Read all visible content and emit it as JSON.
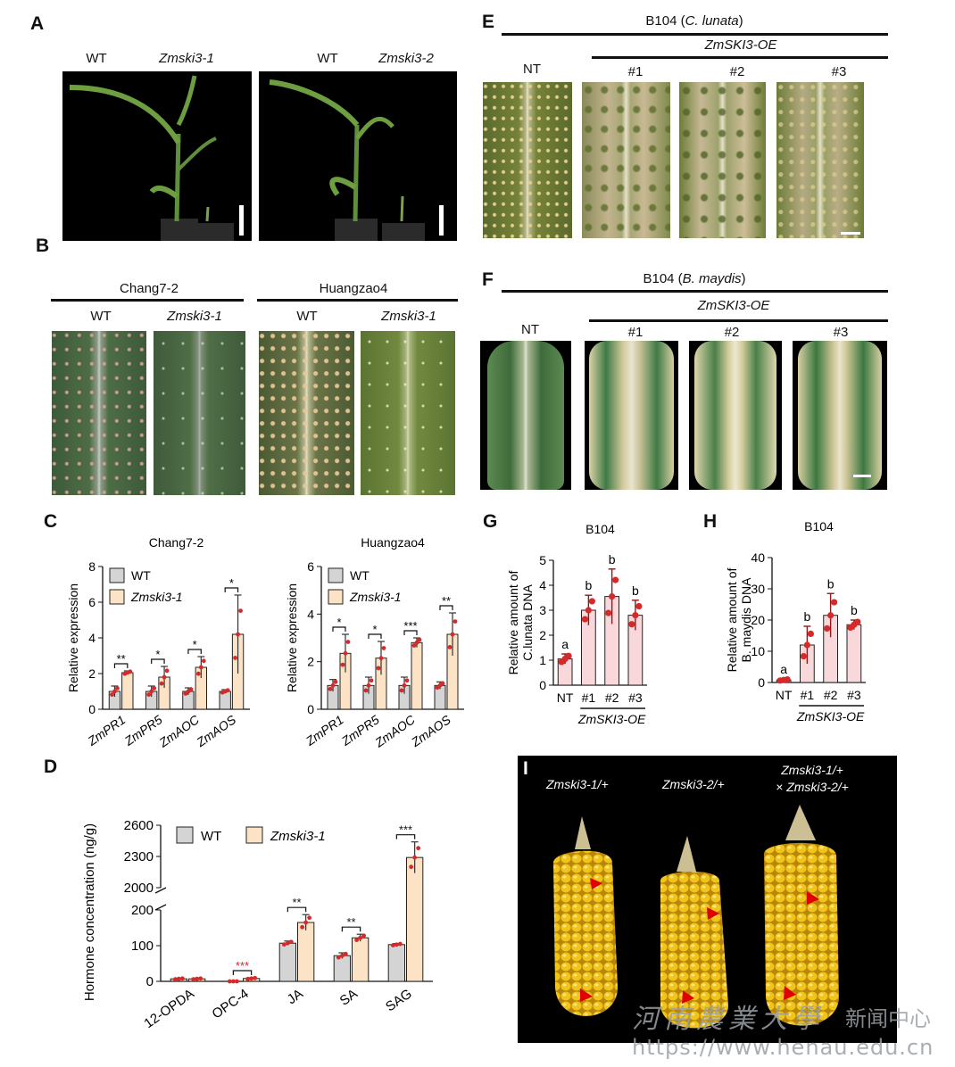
{
  "panels": {
    "A": {
      "letter": "A",
      "left": {
        "wt": "WT",
        "mut": "Zmski3-1"
      },
      "right": {
        "wt": "WT",
        "mut": "Zmski3-2"
      }
    },
    "B": {
      "letter": "B",
      "group1": "Chang7-2",
      "group2": "Huangzao4",
      "wt": "WT",
      "mut": "Zmski3-1"
    },
    "C": {
      "letter": "C"
    },
    "D": {
      "letter": "D"
    },
    "E": {
      "letter": "E",
      "title_prefix": "B104 (",
      "title_species": "C. lunata",
      "title_suffix": ")",
      "sub": "ZmSKI3-OE",
      "labels": [
        "NT",
        "#1",
        "#2",
        "#3"
      ]
    },
    "F": {
      "letter": "F",
      "title_prefix": "B104 (",
      "title_species": "B. maydis",
      "title_suffix": ")",
      "sub": "ZmSKI3-OE",
      "labels": [
        "NT",
        "#1",
        "#2",
        "#3"
      ]
    },
    "G": {
      "letter": "G"
    },
    "H": {
      "letter": "H"
    },
    "I": {
      "letter": "I",
      "labels": [
        "Zmski3-1/+",
        "Zmski3-2/+"
      ],
      "cross_line1": "Zmski3-1/+",
      "cross_line2": "× Zmski3-2/+"
    }
  },
  "watermark": {
    "cn": "河南農業大學",
    "cn2": "新闻中心",
    "url": "https://www.henau.edu.cn"
  },
  "colors": {
    "wt": "#d4d4d4",
    "mut": "#fce3c6",
    "oe": "#f9d8dc",
    "point": "#d42a2a",
    "error": "#8e1a1a",
    "arrow": "#e00000"
  },
  "chart_data": [
    {
      "id": "C1",
      "type": "bar",
      "title": "Chang7-2",
      "ylabel": "Relative expression",
      "ylim": [
        0,
        8
      ],
      "yticks": [
        0,
        2,
        4,
        6,
        8
      ],
      "categories": [
        "ZmPR1",
        "ZmPR5",
        "ZmAOC",
        "ZmAOS"
      ],
      "series": [
        {
          "name": "WT",
          "values": [
            1.0,
            1.0,
            1.0,
            1.0
          ],
          "err": [
            0.3,
            0.3,
            0.2,
            0.1
          ]
        },
        {
          "name": "Zmski3-1",
          "values": [
            2.05,
            1.8,
            2.35,
            4.2
          ],
          "err": [
            0.1,
            0.6,
            0.6,
            2.2
          ]
        }
      ],
      "significance": [
        "**",
        "*",
        "*",
        "*"
      ],
      "legend": "top-left"
    },
    {
      "id": "C2",
      "type": "bar",
      "title": "Huangzao4",
      "ylabel": "Relative expression",
      "ylim": [
        0,
        6
      ],
      "yticks": [
        0,
        2,
        4,
        6
      ],
      "categories": [
        "ZmPR1",
        "ZmPR5",
        "ZmAOC",
        "ZmAOS"
      ],
      "series": [
        {
          "name": "WT",
          "values": [
            1.0,
            1.0,
            1.0,
            1.0
          ],
          "err": [
            0.25,
            0.35,
            0.35,
            0.15
          ]
        },
        {
          "name": "Zmski3-1",
          "values": [
            2.35,
            2.15,
            2.8,
            3.15
          ],
          "err": [
            0.8,
            0.7,
            0.2,
            0.9
          ]
        }
      ],
      "significance": [
        "*",
        "*",
        "***",
        "**"
      ],
      "legend": "top-left"
    },
    {
      "id": "D",
      "type": "bar",
      "ylabel": "Hormone concentration (ng/g)",
      "yticks": [
        0,
        100,
        200,
        2000,
        2300,
        2600
      ],
      "axis_break": [
        200,
        2000
      ],
      "categories": [
        "12-OPDA",
        "OPC-4",
        "JA",
        "SA",
        "SAG"
      ],
      "series": [
        {
          "name": "WT",
          "values": [
            7,
            0,
            107,
            72,
            103
          ],
          "err": [
            2,
            0,
            6,
            8,
            3
          ]
        },
        {
          "name": "Zmski3-1",
          "values": [
            7,
            8,
            165,
            122,
            2290
          ],
          "err": [
            2,
            2,
            22,
            10,
            150
          ]
        }
      ],
      "significance": [
        "",
        "***",
        "**",
        "**",
        "***"
      ],
      "legend": "top-left"
    },
    {
      "id": "G",
      "type": "bar",
      "title": "B104",
      "ylabel": "Relative amount of C.lunata DNA",
      "ylim": [
        0,
        5
      ],
      "yticks": [
        0,
        1,
        2,
        3,
        4,
        5
      ],
      "categories": [
        "NT",
        "#1",
        "#2",
        "#3"
      ],
      "group_label": "ZmSKI3-OE",
      "series": [
        {
          "name": "",
          "values": [
            1.05,
            3.0,
            3.55,
            2.8
          ],
          "err": [
            0.2,
            0.6,
            1.1,
            0.6
          ]
        }
      ],
      "letters": [
        "a",
        "b",
        "b",
        "b"
      ]
    },
    {
      "id": "H",
      "type": "bar",
      "title": "B104",
      "ylabel": "Relative amount of B. maydis DNA",
      "ylim": [
        0,
        40
      ],
      "yticks": [
        0,
        10,
        20,
        30,
        40
      ],
      "categories": [
        "NT",
        "#1",
        "#2",
        "#3"
      ],
      "group_label": "ZmSKI3-OE",
      "series": [
        {
          "name": "",
          "values": [
            0.8,
            12,
            21.5,
            18.5
          ],
          "err": [
            0.3,
            6,
            7,
            1.5
          ]
        }
      ],
      "letters": [
        "a",
        "b",
        "b",
        "b"
      ]
    }
  ]
}
